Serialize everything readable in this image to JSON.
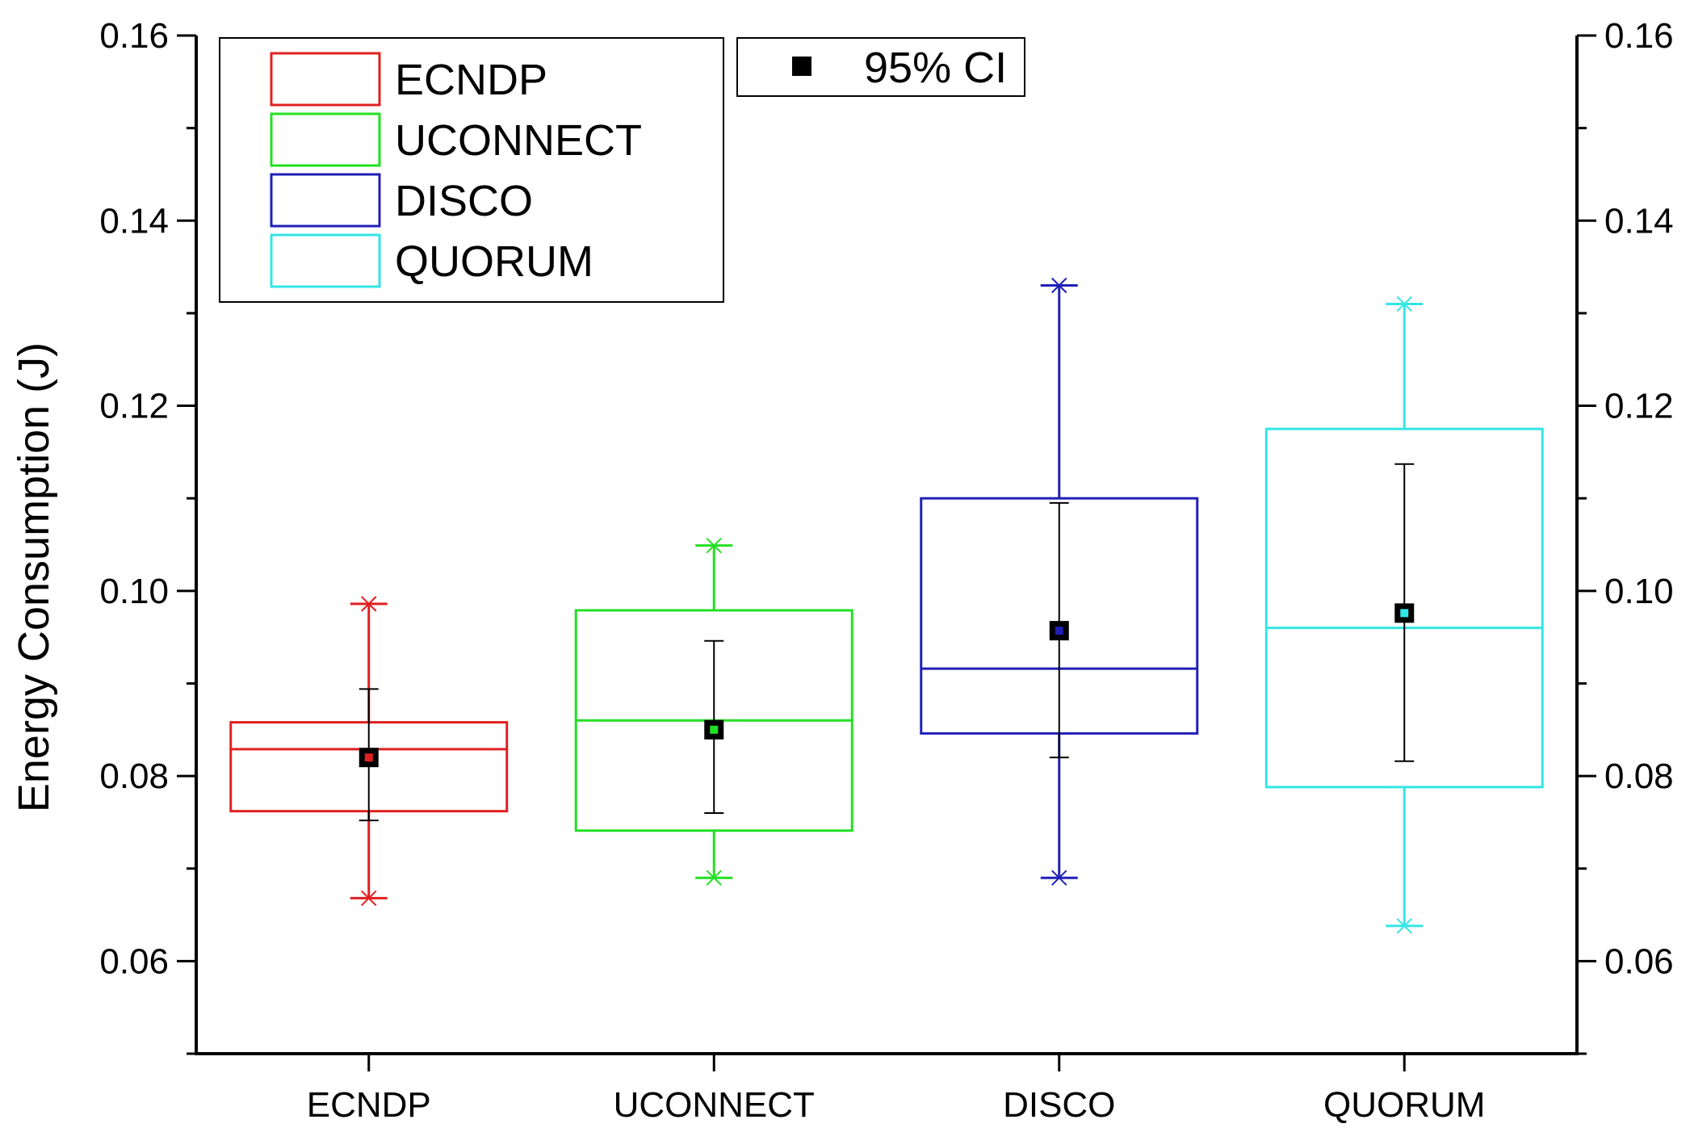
{
  "chart_data": {
    "type": "box",
    "title": "",
    "ylabel": "Energy Consumption (J)",
    "xlabel": "",
    "ylim": [
      0.05,
      0.16
    ],
    "yticks_labeled": [
      0.06,
      0.08,
      0.1,
      0.12,
      0.14,
      0.16
    ],
    "ytick_labels": [
      "0.06",
      "0.08",
      "0.10",
      "0.12",
      "0.14",
      "0.16"
    ],
    "yticks_minor": [
      0.05,
      0.07,
      0.09,
      0.11,
      0.13,
      0.15
    ],
    "categories": [
      "ECNDP",
      "UCONNECT",
      "DISCO",
      "QUORUM"
    ],
    "series": [
      {
        "name": "ECNDP",
        "color": "#e02020",
        "q1": 0.0762,
        "median": 0.0829,
        "q3": 0.0858,
        "whisker_low": 0.0668,
        "whisker_high": 0.0986,
        "mean": 0.082,
        "ci_low": 0.0752,
        "ci_high": 0.0894
      },
      {
        "name": "UCONNECT",
        "color": "#22e022",
        "q1": 0.0741,
        "median": 0.086,
        "q3": 0.0979,
        "whisker_low": 0.069,
        "whisker_high": 0.1049,
        "mean": 0.085,
        "ci_low": 0.076,
        "ci_high": 0.0946
      },
      {
        "name": "DISCO",
        "color": "#2020b8",
        "q1": 0.0846,
        "median": 0.0916,
        "q3": 0.11,
        "whisker_low": 0.069,
        "whisker_high": 0.133,
        "mean": 0.0957,
        "ci_low": 0.082,
        "ci_high": 0.1095
      },
      {
        "name": "QUORUM",
        "color": "#33e6e6",
        "q1": 0.0788,
        "median": 0.096,
        "q3": 0.1175,
        "whisker_low": 0.0638,
        "whisker_high": 0.131,
        "mean": 0.0976,
        "ci_low": 0.0816,
        "ci_high": 0.1137
      }
    ],
    "legend": {
      "placement": "top-left",
      "entries": [
        "ECNDP",
        "UCONNECT",
        "DISCO",
        "QUORUM"
      ]
    },
    "ci_legend": {
      "placement": "top-center",
      "label": "95% CI"
    }
  }
}
